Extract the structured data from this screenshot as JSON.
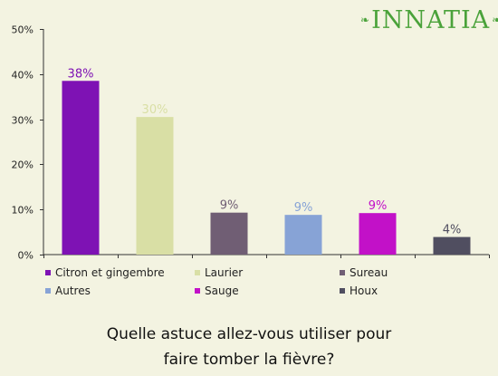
{
  "logo": {
    "text": "INNATIA",
    "leaf_icon": "leaf-icon"
  },
  "chart_data": {
    "type": "bar",
    "categories": [
      "Citron et gingembre",
      "Laurier",
      "Sureau",
      "Autres",
      "Sauge",
      "Houx"
    ],
    "values": [
      38,
      30,
      9,
      9,
      9,
      4
    ],
    "bar_heights": [
      38.5,
      30.5,
      9.3,
      8.8,
      9.2,
      3.9
    ],
    "data_labels": [
      "38%",
      "30%",
      "9%",
      "9%",
      "9%",
      "4%"
    ],
    "colors": [
      "#7e12b4",
      "#d9dfa5",
      "#705e74",
      "#87a3d6",
      "#c211c8",
      "#504e60"
    ],
    "label_colors": [
      "#7e12b4",
      "#d9dfa5",
      "#705e74",
      "#87a3d6",
      "#c211c8",
      "#504e60"
    ],
    "yticks": [
      "0%",
      "10%",
      "20%",
      "30%",
      "40%",
      "50%"
    ],
    "ylim": [
      0,
      50
    ],
    "legend_position": "bottom",
    "grid": false
  },
  "legend": [
    {
      "label": "Citron et gingembre",
      "color": "#7e12b4"
    },
    {
      "label": "Laurier",
      "color": "#d9dfa5"
    },
    {
      "label": "Sureau",
      "color": "#705e74"
    },
    {
      "label": "Autres",
      "color": "#87a3d6"
    },
    {
      "label": "Sauge",
      "color": "#c211c8"
    },
    {
      "label": "Houx",
      "color": "#504e60"
    }
  ],
  "question": {
    "line1": "Quelle astuce allez-vous utiliser pour",
    "line2": "faire tomber la fièvre?"
  }
}
